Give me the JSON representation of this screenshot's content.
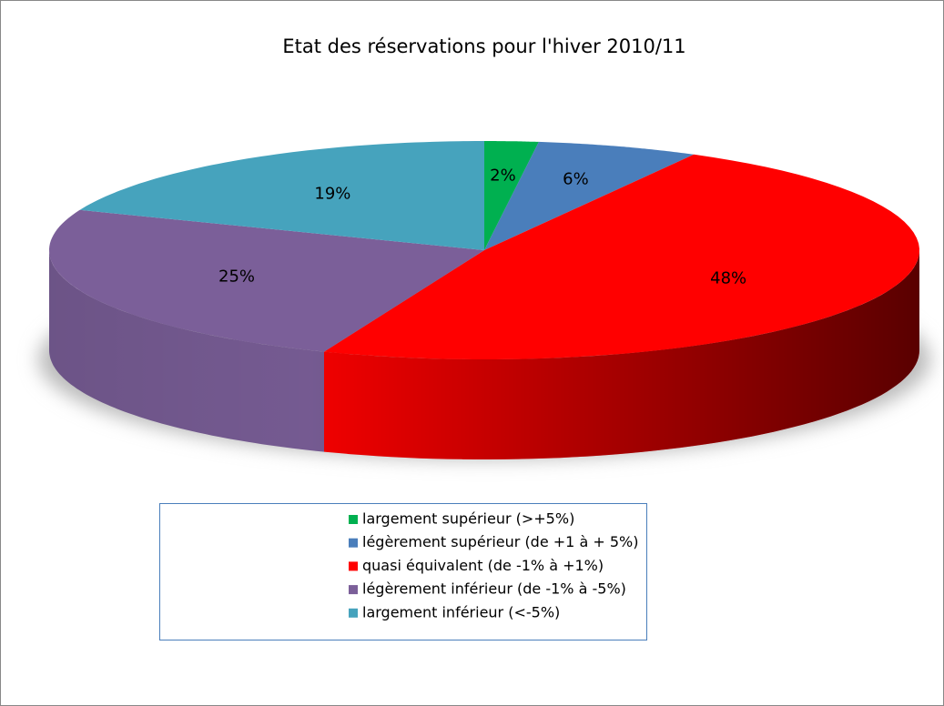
{
  "chart_data": {
    "type": "pie",
    "title": "Etat des réservations pour l'hiver 2010/11",
    "categories": [
      "largement supérieur (>+5%)",
      "légèrement supérieur (de +1 à + 5%)",
      "quasi équivalent (de -1% à +1%)",
      "légèrement inférieur (de -1% à -5%)",
      "largement inférieur (<-5%)"
    ],
    "values": [
      2,
      6,
      48,
      25,
      19
    ],
    "value_labels": [
      "2%",
      "6%",
      "48%",
      "25%",
      "19%"
    ],
    "colors": [
      "#00b050",
      "#4a7ebb",
      "#ff0000",
      "#7b5f99",
      "#46a3bd"
    ],
    "legend": "bottom"
  }
}
